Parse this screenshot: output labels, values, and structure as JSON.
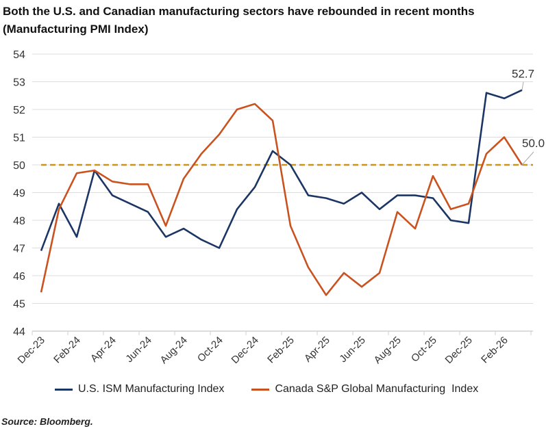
{
  "title": "Both the U.S. and Canadian manufacturing sectors have rebounded in recent months (Manufacturing PMI Index)",
  "source": "Source: Bloomberg.",
  "chart_data": {
    "type": "line",
    "title": "Both the U.S. and Canadian manufacturing sectors have rebounded in recent months (Manufacturing PMI Index)",
    "x": [
      "Dec-23",
      "Jan-24",
      "Feb-24",
      "Mar-24",
      "Apr-24",
      "May-24",
      "Jun-24",
      "Jul-24",
      "Aug-24",
      "Sep-24",
      "Oct-24",
      "Nov-24",
      "Dec-24",
      "Jan-25",
      "Feb-25",
      "Mar-25",
      "Apr-25",
      "May-25",
      "Jun-25",
      "Jul-25",
      "Aug-25",
      "Sep-25",
      "Oct-25",
      "Nov-25",
      "Dec-25",
      "Jan-26",
      "Feb-26",
      "Mar-26"
    ],
    "x_tick_labels": [
      "Dec-23",
      "Feb-24",
      "Apr-24",
      "Jun-24",
      "Aug-24",
      "Oct-24",
      "Dec-24",
      "Feb-25",
      "Apr-25",
      "Jun-25",
      "Aug-25",
      "Oct-25",
      "Dec-25",
      "Feb-26"
    ],
    "ylim": [
      44,
      54
    ],
    "y_ticks": [
      44,
      45,
      46,
      47,
      48,
      49,
      50,
      51,
      52,
      53,
      54
    ],
    "grid": true,
    "legend_position": "bottom",
    "reference_line": {
      "value": 50,
      "style": "dashed",
      "color": "#c9961a"
    },
    "series": [
      {
        "name": "U.S. ISM Manufacturing Index",
        "color": "#1b3564",
        "values": [
          46.9,
          48.6,
          47.4,
          49.8,
          48.9,
          48.6,
          48.3,
          47.4,
          47.7,
          47.3,
          47.0,
          48.4,
          49.2,
          50.5,
          50.0,
          48.9,
          48.8,
          48.6,
          49.0,
          48.4,
          48.9,
          48.9,
          48.8,
          48.0,
          47.9,
          52.6,
          52.4,
          52.7
        ],
        "end_label": "52.7"
      },
      {
        "name": "Canada S&P Global Manufacturing  Index",
        "color": "#c9521f",
        "values": [
          45.4,
          48.4,
          49.7,
          49.8,
          49.4,
          49.3,
          49.3,
          47.8,
          49.5,
          50.4,
          51.1,
          52.0,
          52.2,
          51.6,
          47.8,
          46.3,
          45.3,
          46.1,
          45.6,
          46.1,
          48.3,
          47.7,
          49.6,
          48.4,
          48.6,
          50.4,
          51.0,
          50.0
        ],
        "end_label": "50.0"
      }
    ]
  }
}
